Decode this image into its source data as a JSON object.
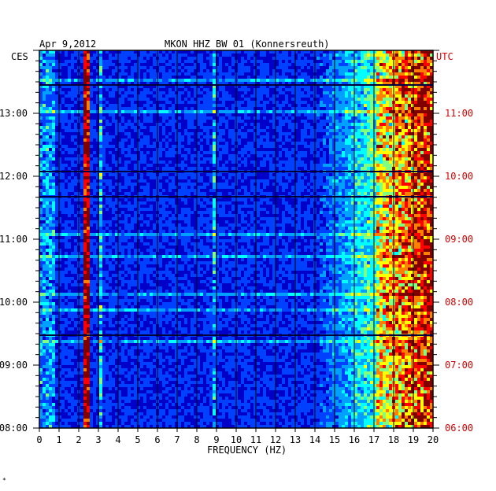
{
  "chart_data": {
    "type": "heatmap",
    "header": {
      "date": "Apr 9,2012",
      "station": "MKON HHZ BW 01 (Konnersreuth)"
    },
    "left_axis_label": "CES",
    "right_axis_label": "UTC",
    "xlabel": "FREQUENCY (HZ)",
    "x_range": [
      0,
      20
    ],
    "x_ticks": [
      "0",
      "1",
      "2",
      "3",
      "4",
      "5",
      "6",
      "7",
      "8",
      "9",
      "10",
      "11",
      "12",
      "13",
      "14",
      "15",
      "16",
      "17",
      "18",
      "19",
      "20"
    ],
    "y_range_hours_ces": [
      8.0,
      14.0
    ],
    "y_ticks_left": [
      {
        "label": "13:00",
        "hour": 13
      },
      {
        "label": "12:00",
        "hour": 12
      },
      {
        "label": "11:00",
        "hour": 11
      },
      {
        "label": "10:00",
        "hour": 10
      },
      {
        "label": "09:00",
        "hour": 9
      },
      {
        "label": "08:00",
        "hour": 8
      }
    ],
    "y_ticks_right": [
      {
        "label": "11:00",
        "hour": 13
      },
      {
        "label": "10:00",
        "hour": 12
      },
      {
        "label": "09:00",
        "hour": 11
      },
      {
        "label": "08:00",
        "hour": 10
      },
      {
        "label": "07:00",
        "hour": 9
      },
      {
        "label": "06:00",
        "hour": 8
      }
    ],
    "colorscale": [
      "#000080",
      "#0000c8",
      "#0040ff",
      "#00a0ff",
      "#00ffff",
      "#80ff80",
      "#ffff00",
      "#ff8000",
      "#ff0000",
      "#800000"
    ],
    "grid": true
  },
  "footer_mark": "*"
}
